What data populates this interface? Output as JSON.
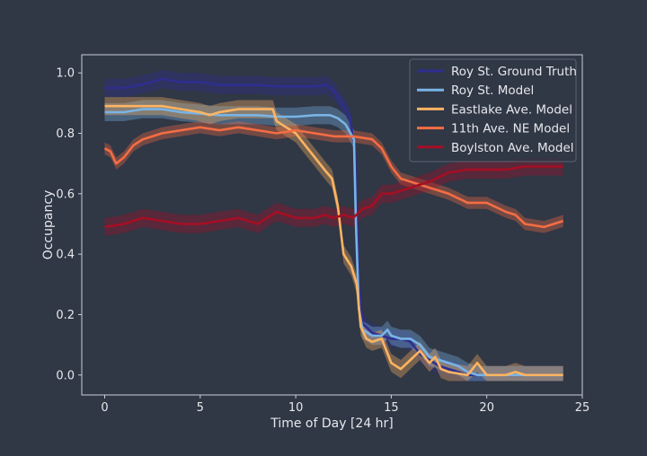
{
  "chart_data": {
    "type": "line",
    "xlabel": "Time of Day [24 hr]",
    "ylabel": "Occupancy",
    "xlim": [
      -1.2,
      25
    ],
    "ylim": [
      -0.066,
      1.06
    ],
    "xticks": [
      0,
      5,
      10,
      15,
      20,
      25
    ],
    "xtick_labels": [
      "0",
      "5",
      "10",
      "15",
      "20",
      "25"
    ],
    "yticks": [
      0.0,
      0.2,
      0.4,
      0.6,
      0.8,
      1.0
    ],
    "ytick_labels": [
      "0.0",
      "0.2",
      "0.4",
      "0.6",
      "0.8",
      "1.0"
    ],
    "grid": false,
    "legend_position": "top-right",
    "series": [
      {
        "name": "Roy St. Ground Truth",
        "color": "#2e2f8f",
        "band": 0.03,
        "points": [
          [
            0,
            0.95
          ],
          [
            1,
            0.95
          ],
          [
            1.8,
            0.96
          ],
          [
            2.5,
            0.97
          ],
          [
            3,
            0.98
          ],
          [
            4,
            0.97
          ],
          [
            5,
            0.97
          ],
          [
            6,
            0.96
          ],
          [
            7,
            0.96
          ],
          [
            8,
            0.96
          ],
          [
            9,
            0.955
          ],
          [
            10,
            0.955
          ],
          [
            11,
            0.955
          ],
          [
            11.6,
            0.96
          ],
          [
            12,
            0.94
          ],
          [
            12.4,
            0.9
          ],
          [
            12.8,
            0.86
          ],
          [
            13.1,
            0.75
          ],
          [
            13.3,
            0.3
          ],
          [
            13.5,
            0.17
          ],
          [
            14,
            0.14
          ],
          [
            14.5,
            0.13
          ],
          [
            15,
            0.12
          ],
          [
            15.5,
            0.12
          ],
          [
            16,
            0.11
          ],
          [
            16.5,
            0.07
          ],
          [
            17,
            0.05
          ],
          [
            17.5,
            0.03
          ],
          [
            18,
            0.02
          ],
          [
            18.5,
            0.01
          ],
          [
            19,
            0.0
          ],
          [
            20,
            0.0
          ],
          [
            21,
            0.0
          ],
          [
            22,
            0.0
          ],
          [
            23,
            0.0
          ],
          [
            24,
            0.0
          ]
        ]
      },
      {
        "name": "Roy St. Model",
        "color": "#79b4e6",
        "band": 0.03,
        "points": [
          [
            0,
            0.87
          ],
          [
            1,
            0.87
          ],
          [
            2,
            0.88
          ],
          [
            3,
            0.88
          ],
          [
            4,
            0.87
          ],
          [
            5,
            0.865
          ],
          [
            6,
            0.86
          ],
          [
            7,
            0.86
          ],
          [
            8,
            0.86
          ],
          [
            9,
            0.855
          ],
          [
            10,
            0.855
          ],
          [
            11,
            0.86
          ],
          [
            11.8,
            0.86
          ],
          [
            12.2,
            0.85
          ],
          [
            12.6,
            0.83
          ],
          [
            13.05,
            0.78
          ],
          [
            13.15,
            0.5
          ],
          [
            13.3,
            0.22
          ],
          [
            13.5,
            0.15
          ],
          [
            14,
            0.13
          ],
          [
            14.5,
            0.13
          ],
          [
            14.8,
            0.15
          ],
          [
            15,
            0.13
          ],
          [
            15.5,
            0.12
          ],
          [
            16,
            0.12
          ],
          [
            16.5,
            0.1
          ],
          [
            17,
            0.06
          ],
          [
            17.5,
            0.05
          ],
          [
            18,
            0.04
          ],
          [
            18.5,
            0.03
          ],
          [
            19,
            0.01
          ],
          [
            19.5,
            0.0
          ],
          [
            20,
            0.0
          ],
          [
            21,
            0.0
          ],
          [
            22,
            0.0
          ],
          [
            23,
            0.0
          ],
          [
            24,
            0.0
          ]
        ]
      },
      {
        "name": "Eastlake Ave. Model",
        "color": "#fdb462",
        "band": 0.03,
        "points": [
          [
            0,
            0.89
          ],
          [
            1,
            0.89
          ],
          [
            2,
            0.89
          ],
          [
            3,
            0.89
          ],
          [
            4,
            0.88
          ],
          [
            5,
            0.87
          ],
          [
            5.5,
            0.86
          ],
          [
            6,
            0.87
          ],
          [
            7,
            0.88
          ],
          [
            8,
            0.88
          ],
          [
            8.8,
            0.88
          ],
          [
            9,
            0.84
          ],
          [
            9.5,
            0.82
          ],
          [
            10,
            0.8
          ],
          [
            10.5,
            0.76
          ],
          [
            11,
            0.72
          ],
          [
            11.5,
            0.68
          ],
          [
            11.9,
            0.65
          ],
          [
            12.2,
            0.56
          ],
          [
            12.5,
            0.4
          ],
          [
            12.9,
            0.36
          ],
          [
            13.2,
            0.3
          ],
          [
            13.4,
            0.16
          ],
          [
            13.7,
            0.12
          ],
          [
            14,
            0.11
          ],
          [
            14.5,
            0.12
          ],
          [
            15,
            0.04
          ],
          [
            15.5,
            0.02
          ],
          [
            16,
            0.05
          ],
          [
            16.5,
            0.08
          ],
          [
            17,
            0.04
          ],
          [
            17.3,
            0.06
          ],
          [
            17.6,
            0.02
          ],
          [
            18,
            0.01
          ],
          [
            19,
            0.0
          ],
          [
            19.5,
            0.04
          ],
          [
            20,
            0.0
          ],
          [
            21,
            0.0
          ],
          [
            21.5,
            0.01
          ],
          [
            22,
            0.0
          ],
          [
            23,
            0.0
          ],
          [
            24,
            0.0
          ]
        ]
      },
      {
        "name": "11th Ave. NE Model",
        "color": "#f46d43",
        "band": 0.02,
        "points": [
          [
            0,
            0.75
          ],
          [
            0.3,
            0.74
          ],
          [
            0.6,
            0.7
          ],
          [
            1,
            0.72
          ],
          [
            1.5,
            0.76
          ],
          [
            2,
            0.78
          ],
          [
            3,
            0.8
          ],
          [
            4,
            0.81
          ],
          [
            5,
            0.82
          ],
          [
            6,
            0.81
          ],
          [
            7,
            0.82
          ],
          [
            8,
            0.81
          ],
          [
            9,
            0.8
          ],
          [
            10,
            0.81
          ],
          [
            11,
            0.8
          ],
          [
            12,
            0.79
          ],
          [
            13,
            0.79
          ],
          [
            14,
            0.78
          ],
          [
            14.5,
            0.75
          ],
          [
            15,
            0.69
          ],
          [
            15.5,
            0.65
          ],
          [
            16,
            0.64
          ],
          [
            16.5,
            0.63
          ],
          [
            17,
            0.62
          ],
          [
            18,
            0.6
          ],
          [
            19,
            0.57
          ],
          [
            20,
            0.57
          ],
          [
            21,
            0.54
          ],
          [
            21.5,
            0.53
          ],
          [
            22,
            0.5
          ],
          [
            23,
            0.49
          ],
          [
            24,
            0.51
          ]
        ]
      },
      {
        "name": "Boylston Ave. Model",
        "color": "#a50f24",
        "band": 0.03,
        "points": [
          [
            0,
            0.49
          ],
          [
            1,
            0.5
          ],
          [
            2,
            0.52
          ],
          [
            3,
            0.51
          ],
          [
            4,
            0.5
          ],
          [
            5,
            0.5
          ],
          [
            6,
            0.51
          ],
          [
            7,
            0.52
          ],
          [
            8,
            0.5
          ],
          [
            9,
            0.54
          ],
          [
            10,
            0.52
          ],
          [
            11,
            0.52
          ],
          [
            11.5,
            0.53
          ],
          [
            12,
            0.52
          ],
          [
            12.5,
            0.53
          ],
          [
            13,
            0.52
          ],
          [
            13.5,
            0.55
          ],
          [
            14,
            0.56
          ],
          [
            14.5,
            0.6
          ],
          [
            15,
            0.6
          ],
          [
            15.5,
            0.61
          ],
          [
            16,
            0.62
          ],
          [
            17,
            0.64
          ],
          [
            18,
            0.67
          ],
          [
            19,
            0.68
          ],
          [
            20,
            0.68
          ],
          [
            21,
            0.68
          ],
          [
            22,
            0.69
          ],
          [
            23,
            0.69
          ],
          [
            24,
            0.69
          ]
        ]
      }
    ]
  }
}
